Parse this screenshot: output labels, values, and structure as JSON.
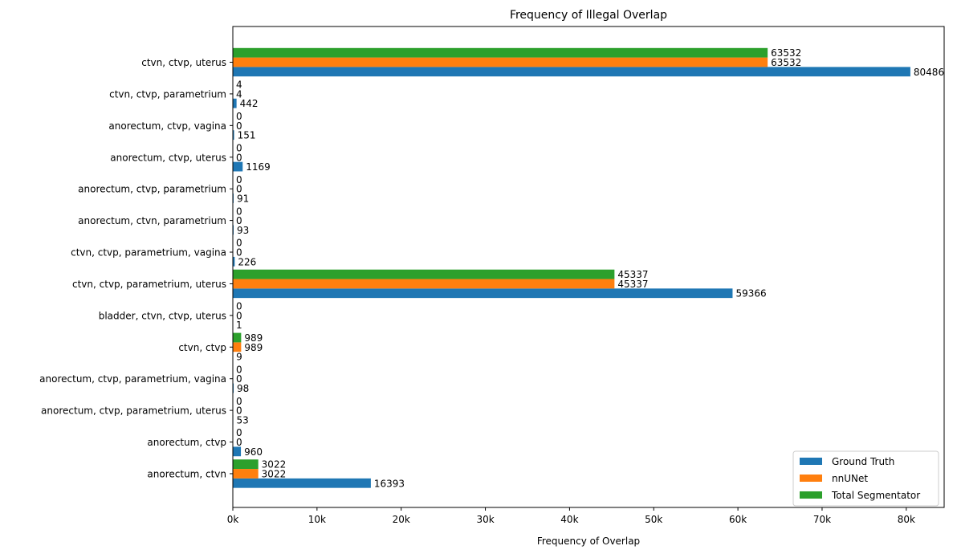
{
  "chart_data": {
    "type": "bar",
    "orientation": "horizontal",
    "title": "Frequency of Illegal Overlap",
    "xlabel": "Frequency of Overlap",
    "ylabel": "",
    "xlim": [
      0,
      84500
    ],
    "xticks": [
      {
        "value": 0,
        "label": "0k"
      },
      {
        "value": 10000,
        "label": "10k"
      },
      {
        "value": 20000,
        "label": "20k"
      },
      {
        "value": 30000,
        "label": "30k"
      },
      {
        "value": 40000,
        "label": "40k"
      },
      {
        "value": 50000,
        "label": "50k"
      },
      {
        "value": 60000,
        "label": "60k"
      },
      {
        "value": 70000,
        "label": "70k"
      },
      {
        "value": 80000,
        "label": "80k"
      }
    ],
    "categories": [
      "ctvn, ctvp, uterus",
      "ctvn, ctvp, parametrium",
      "anorectum, ctvp, vagina",
      "anorectum, ctvp, uterus",
      "anorectum, ctvp, parametrium",
      "anorectum, ctvn, parametrium",
      "ctvn, ctvp, parametrium, vagina",
      "ctvn, ctvp, parametrium, uterus",
      "bladder, ctvn, ctvp, uterus",
      "ctvn, ctvp",
      "anorectum, ctvp, parametrium, vagina",
      "anorectum, ctvp, parametrium, uterus",
      "anorectum, ctvp",
      "anorectum, ctvn"
    ],
    "series": [
      {
        "name": "Ground Truth",
        "color": "#1f77b4",
        "values": [
          80486,
          442,
          151,
          1169,
          91,
          93,
          226,
          59366,
          1,
          9,
          98,
          53,
          960,
          16393
        ]
      },
      {
        "name": "nnUNet",
        "color": "#ff7f0e",
        "values": [
          63532,
          4,
          0,
          0,
          0,
          0,
          0,
          45337,
          0,
          989,
          0,
          0,
          0,
          3022
        ]
      },
      {
        "name": "Total Segmentator",
        "color": "#2ca02c",
        "values": [
          63532,
          4,
          0,
          0,
          0,
          0,
          0,
          45337,
          0,
          989,
          0,
          0,
          0,
          3022
        ]
      }
    ],
    "legend": {
      "position": "lower-right"
    },
    "grid": false
  }
}
